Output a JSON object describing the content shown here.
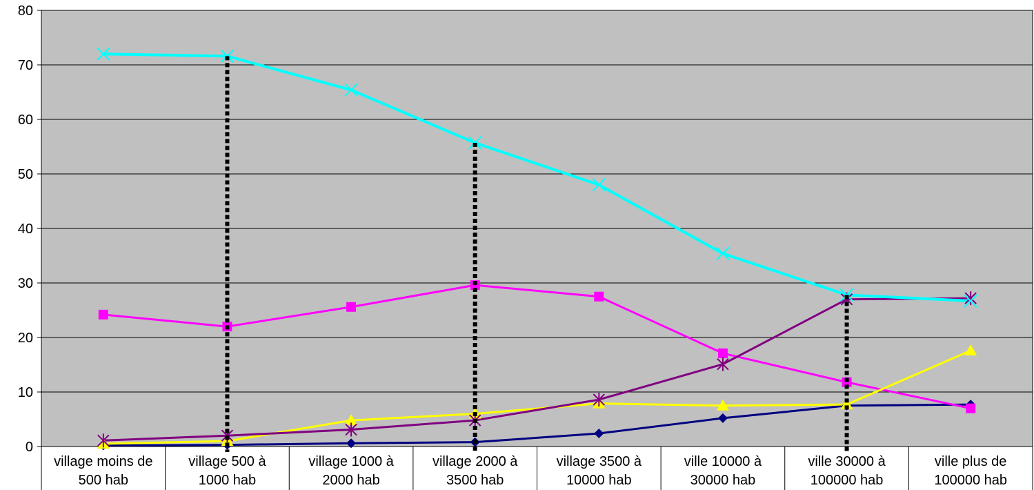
{
  "chart_data": {
    "type": "line",
    "title": "",
    "xlabel": "",
    "ylabel": "",
    "ylim": [
      0,
      80
    ],
    "y_ticks": [
      "0",
      "10",
      "20",
      "30",
      "40",
      "50",
      "60",
      "70",
      "80"
    ],
    "grid": "horizontal",
    "legend": "none",
    "plot_background": "#c0c0c0",
    "categories": [
      [
        "village moins de",
        "500 hab"
      ],
      [
        "village 500 à",
        "1000 hab"
      ],
      [
        "village 1000 à",
        "2000 hab"
      ],
      [
        "village 2000 à",
        "3500 hab"
      ],
      [
        "village 3500 à",
        "10000 hab"
      ],
      [
        "ville 10000 à",
        "30000 hab"
      ],
      [
        "ville 30000 à",
        "100000 hab"
      ],
      [
        "ville plus de",
        "100000 hab"
      ]
    ],
    "series": [
      {
        "color": "#000080",
        "marker": "diamond",
        "values": [
          0.2,
          0.3,
          0.6,
          0.8,
          2.4,
          5.2,
          7.5,
          7.7
        ]
      },
      {
        "color": "#ff00ff",
        "marker": "square",
        "values": [
          24.2,
          22.0,
          25.6,
          29.6,
          27.5,
          17.1,
          11.8,
          7.0
        ]
      },
      {
        "color": "#ffff00",
        "marker": "triangle",
        "values": [
          0.5,
          1.0,
          4.8,
          6.0,
          7.9,
          7.5,
          7.7,
          17.6
        ]
      },
      {
        "color": "#800080",
        "marker": "asterisk",
        "values": [
          1.1,
          2.0,
          3.1,
          4.8,
          8.6,
          15.1,
          27.0,
          27.2
        ]
      },
      {
        "color": "#00ffff",
        "marker": "x",
        "values": [
          72.0,
          71.6,
          65.4,
          55.7,
          48.0,
          35.4,
          27.8,
          26.7
        ]
      }
    ],
    "vertical_dotted_lines": [
      {
        "category_index": 1,
        "from": -1,
        "to": 71.6
      },
      {
        "category_index": 3,
        "from": -1,
        "to": 55.7
      },
      {
        "category_index": 6,
        "from": -1,
        "to": 27.8
      }
    ]
  }
}
